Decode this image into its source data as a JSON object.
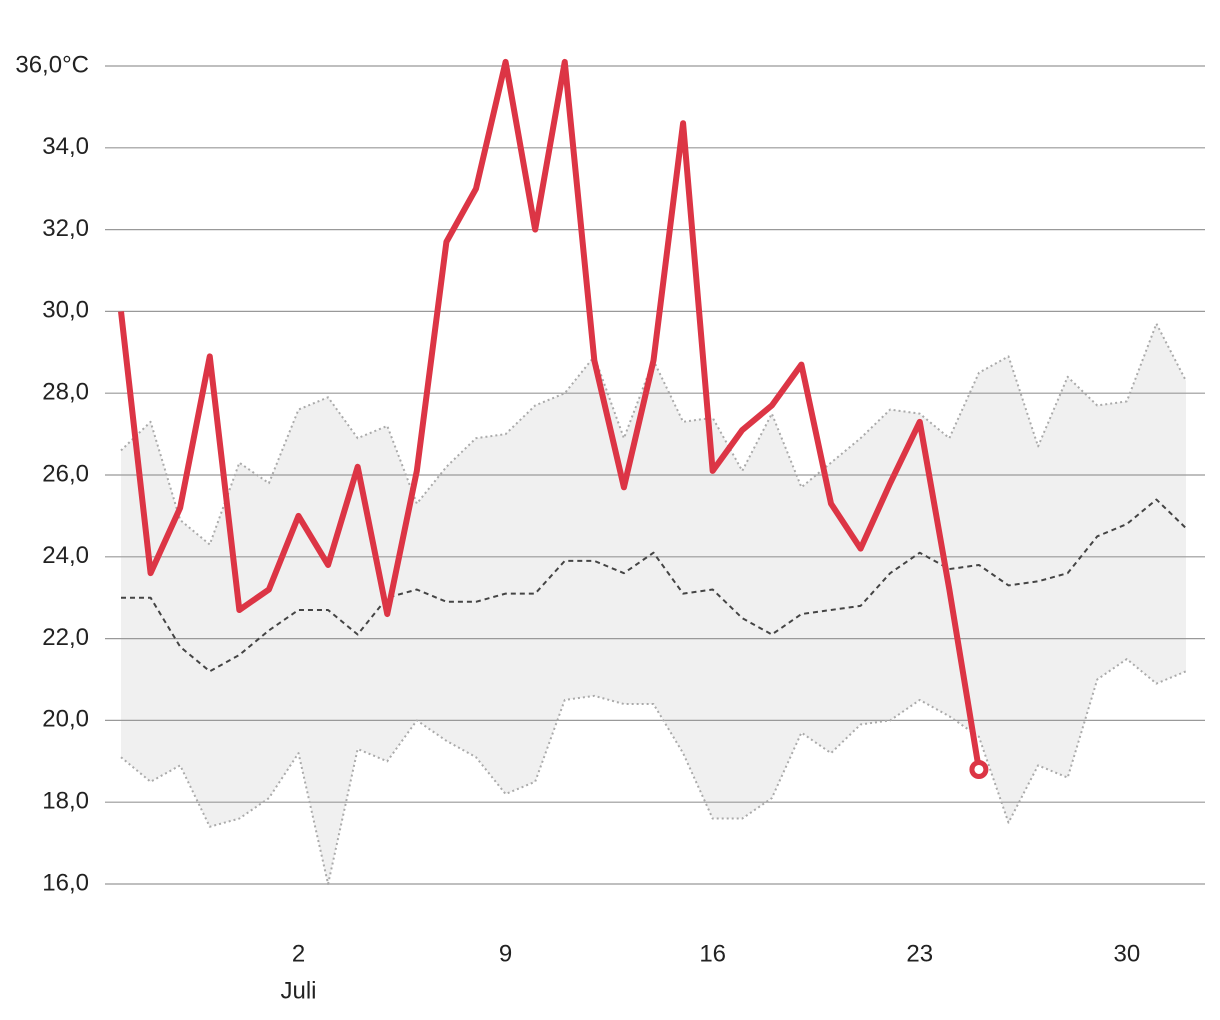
{
  "chart_data": {
    "type": "line",
    "x": [
      -4,
      -3,
      -2,
      -1,
      0,
      1,
      2,
      3,
      4,
      5,
      6,
      7,
      8,
      9,
      10,
      11,
      12,
      13,
      14,
      15,
      16,
      17,
      18,
      19,
      20,
      21,
      22,
      23,
      24,
      25,
      26,
      27,
      28,
      29,
      30,
      31,
      32
    ],
    "xlim": [
      -4,
      32
    ],
    "xticks": [
      2,
      9,
      16,
      23,
      30
    ],
    "month_label": "Juli",
    "ylim": [
      16,
      36
    ],
    "yticks": [
      {
        "value": 16,
        "label": "16,0"
      },
      {
        "value": 18,
        "label": "18,0"
      },
      {
        "value": 20,
        "label": "20,0"
      },
      {
        "value": 22,
        "label": "22,0"
      },
      {
        "value": 24,
        "label": "24,0"
      },
      {
        "value": 26,
        "label": "26,0"
      },
      {
        "value": 28,
        "label": "28,0"
      },
      {
        "value": 30,
        "label": "30,0"
      },
      {
        "value": 32,
        "label": "32,0"
      },
      {
        "value": 34,
        "label": "34,0"
      },
      {
        "value": 36,
        "label": "36,0°C"
      }
    ],
    "grid": true,
    "band_color": "#f0f0f0",
    "series": [
      {
        "color": "#aaaaaa",
        "style": "dotted",
        "values": [
          26.6,
          27.3,
          24.9,
          24.3,
          26.3,
          25.8,
          27.6,
          27.9,
          26.9,
          27.2,
          25.3,
          26.2,
          26.9,
          27.0,
          27.7,
          28.0,
          28.9,
          26.9,
          28.8,
          27.3,
          27.4,
          26.1,
          27.5,
          25.7,
          26.3,
          26.9,
          27.6,
          27.5,
          26.9,
          28.5,
          28.9,
          26.7,
          28.4,
          27.7,
          27.8,
          29.7,
          28.3
        ]
      },
      {
        "color": "#aaaaaa",
        "style": "dotted",
        "values": [
          19.1,
          18.5,
          18.9,
          17.4,
          17.6,
          18.1,
          19.2,
          16.0,
          19.3,
          19.0,
          20.0,
          19.5,
          19.1,
          18.2,
          18.5,
          20.5,
          20.6,
          20.4,
          20.4,
          19.2,
          17.6,
          17.6,
          18.1,
          19.7,
          19.2,
          19.9,
          20.0,
          20.5,
          20.1,
          19.6,
          17.5,
          18.9,
          18.6,
          21.0,
          21.5,
          20.9,
          21.2
        ]
      },
      {
        "color": "#444444",
        "style": "dashed",
        "values": [
          23.0,
          23.0,
          21.8,
          21.2,
          21.6,
          22.2,
          22.7,
          22.7,
          22.1,
          23.0,
          23.2,
          22.9,
          22.9,
          23.1,
          23.1,
          23.9,
          23.9,
          23.6,
          24.1,
          23.1,
          23.2,
          22.5,
          22.1,
          22.6,
          22.7,
          22.8,
          23.6,
          24.1,
          23.7,
          23.8,
          23.3,
          23.4,
          23.6,
          24.5,
          24.8,
          25.4,
          24.7
        ]
      },
      {
        "color": "#dc3545",
        "style": "solid",
        "values": [
          30.0,
          23.6,
          25.2,
          28.9,
          22.7,
          23.2,
          25.0,
          23.8,
          26.2,
          22.6,
          26.1,
          31.7,
          33.0,
          36.1,
          32.0,
          36.1,
          28.8,
          25.7,
          28.8,
          34.6,
          26.1,
          27.1,
          27.7,
          28.7,
          25.3,
          24.2,
          25.8,
          27.3,
          23.2,
          18.8,
          null,
          null,
          null,
          null,
          null,
          null,
          null
        ]
      }
    ]
  }
}
